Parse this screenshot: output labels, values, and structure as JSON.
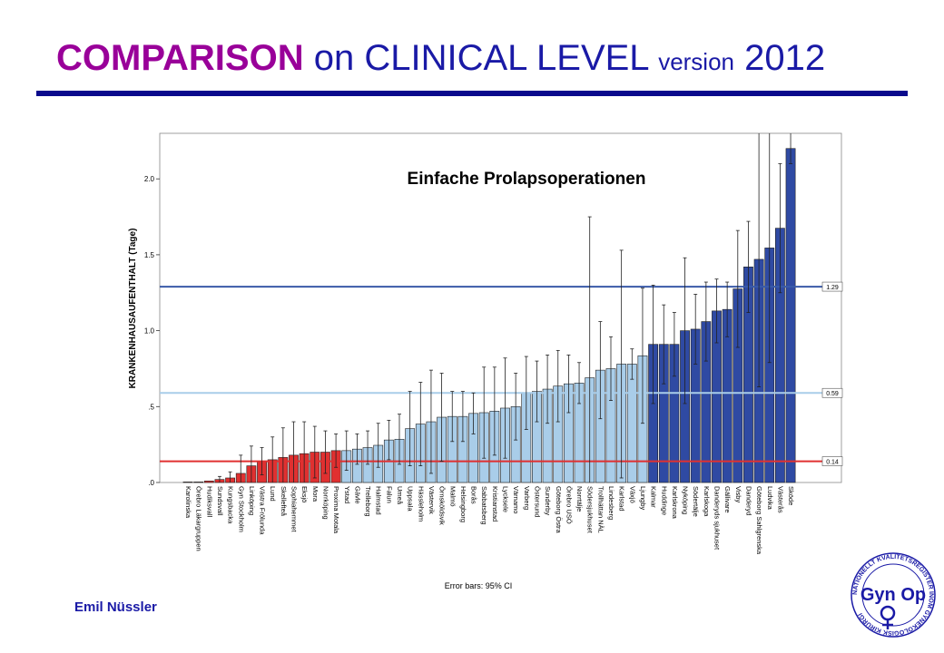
{
  "slide": {
    "title_bold": "COMPARISON",
    "title_mid": " on CLINICAL LEVEL ",
    "title_small": "version",
    "title_year": " 2012",
    "author": "Emil Nüssler"
  },
  "logo": {
    "ring_text": "NATIONELLT KVALITETSREGISTER INOM GYNEKOLOGISK KIRURGI",
    "mark_text": "Gyn Op",
    "color": "#1a1aa6"
  },
  "colors": {
    "red": "#e03030",
    "light": "#a9cde9",
    "dark": "#2f4aa3",
    "line_top": "#3a5aa8",
    "line_mid": "#a9cde9",
    "line_low": "#e03030",
    "title": "#990099",
    "navy": "#1a1aa6"
  },
  "chart_data": {
    "type": "bar",
    "title": "Einfache Prolapsoperationen",
    "ylabel": "KRANKENHAUSAUFENTHALT (Tage)",
    "footnote": "Error bars: 95% CI",
    "ylim": [
      0,
      2.3
    ],
    "yticks": [
      0,
      0.5,
      1.0,
      1.5,
      2.0
    ],
    "ytick_labels": [
      ".0",
      ".5",
      "1.0",
      "1.5",
      "2.0"
    ],
    "reference_lines": [
      {
        "value": 1.29,
        "label": "1.29"
      },
      {
        "value": 0.59,
        "label": "0.59"
      },
      {
        "value": 0.14,
        "label": "0.14"
      }
    ],
    "categories": [
      "Karolinska",
      "Örebro Läkargruppen",
      "Hudiksvall",
      "Sundsvall",
      "Kungsbacka",
      "Gyn Stockholm",
      "Linköping",
      "Västra Frölunda",
      "Lund",
      "Skellefteå",
      "Sophiahemmet",
      "Eksjö",
      "Mora",
      "Norrköping",
      "Proxima Motala",
      "Ystad",
      "Gävle",
      "Trelleborg",
      "Halmstad",
      "Falun",
      "Umeå",
      "Uppsala",
      "Hässleholm",
      "Västervik",
      "Örnsköldsvik",
      "Malmö",
      "Helsingborg",
      "Borås",
      "Sabbatsberg",
      "Kristianstad",
      "Lycksele",
      "Värnamo",
      "Varberg",
      "Östersund",
      "Sunderby",
      "Göteborg Östra",
      "Örebro USÖ",
      "Norrtälje",
      "Södersjukhuset",
      "Trollhättan NÄL",
      "Lindesberg",
      "Karlstad",
      "Växjö",
      "Ljungby",
      "Kalmar",
      "Huddinge",
      "Karlskrona",
      "Nyköping",
      "Södertälje",
      "Karlskoga",
      "Danderyds sjukhuset",
      "Gällivare",
      "Visby",
      "Danderyd",
      "Göteborg Sahlgrenska",
      "Ludvika",
      "Västerås",
      "Sköde"
    ],
    "values": [
      0.0,
      0.0,
      0.01,
      0.02,
      0.03,
      0.06,
      0.11,
      0.14,
      0.15,
      0.165,
      0.18,
      0.19,
      0.2,
      0.2,
      0.21,
      0.21,
      0.22,
      0.23,
      0.245,
      0.28,
      0.285,
      0.355,
      0.385,
      0.4,
      0.43,
      0.435,
      0.435,
      0.455,
      0.46,
      0.47,
      0.49,
      0.5,
      0.59,
      0.6,
      0.615,
      0.635,
      0.65,
      0.655,
      0.69,
      0.74,
      0.75,
      0.78,
      0.78,
      0.835,
      0.91,
      0.91,
      0.91,
      1.0,
      1.01,
      1.06,
      1.13,
      1.14,
      1.275,
      1.42,
      1.47,
      1.545,
      1.675,
      2.2
    ],
    "ci_upper": [
      null,
      null,
      null,
      0.04,
      0.07,
      0.18,
      0.24,
      0.23,
      0.3,
      0.36,
      0.4,
      0.4,
      0.37,
      0.34,
      0.32,
      0.34,
      0.32,
      0.34,
      0.39,
      0.41,
      0.45,
      0.6,
      0.66,
      0.74,
      0.72,
      0.6,
      0.6,
      0.59,
      0.76,
      0.76,
      0.82,
      0.72,
      0.83,
      0.8,
      0.84,
      0.87,
      0.84,
      0.79,
      1.75,
      1.06,
      0.96,
      1.53,
      0.88,
      1.28,
      1.3,
      1.17,
      1.12,
      1.48,
      1.24,
      1.32,
      1.34,
      1.32,
      1.66,
      1.72,
      2.3,
      2.3,
      2.1,
      2.3
    ],
    "ci_lower": [
      null,
      null,
      null,
      0.0,
      0.0,
      0.0,
      0.0,
      0.05,
      0.0,
      0.0,
      0.0,
      0.0,
      0.03,
      0.06,
      0.1,
      0.08,
      0.12,
      0.12,
      0.1,
      0.15,
      0.12,
      0.11,
      0.11,
      0.06,
      0.14,
      0.27,
      0.27,
      0.32,
      0.16,
      0.18,
      0.16,
      0.28,
      0.35,
      0.4,
      0.39,
      0.4,
      0.46,
      0.52,
      0.0,
      0.42,
      0.54,
      0.03,
      0.68,
      0.39,
      0.52,
      0.65,
      0.7,
      0.52,
      0.78,
      0.8,
      0.92,
      0.96,
      0.89,
      1.12,
      0.63,
      0.79,
      1.25,
      2.1
    ],
    "group_counts": {
      "red": 15,
      "light": 29,
      "dark": 14
    }
  }
}
